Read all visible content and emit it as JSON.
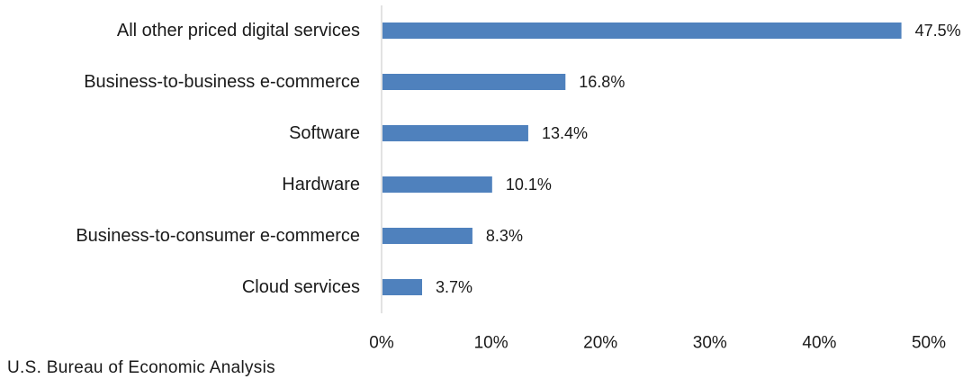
{
  "chart_data": {
    "type": "bar",
    "orientation": "horizontal",
    "categories": [
      "All other priced digital services",
      "Business-to-business e-commerce",
      "Software",
      "Hardware",
      "Business-to-consumer e-commerce",
      "Cloud services"
    ],
    "values": [
      47.5,
      16.8,
      13.4,
      10.1,
      8.3,
      3.7
    ],
    "value_labels": [
      "47.5%",
      "16.8%",
      "13.4%",
      "10.1%",
      "8.3%",
      "3.7%"
    ],
    "xlim": [
      0,
      50
    ],
    "xticks": [
      "0%",
      "10%",
      "20%",
      "30%",
      "40%",
      "50%"
    ],
    "grid": false,
    "bar_color": "#4f81bd",
    "axis_color": "#d9d9d9"
  },
  "source": "U.S. Bureau of Economic Analysis"
}
